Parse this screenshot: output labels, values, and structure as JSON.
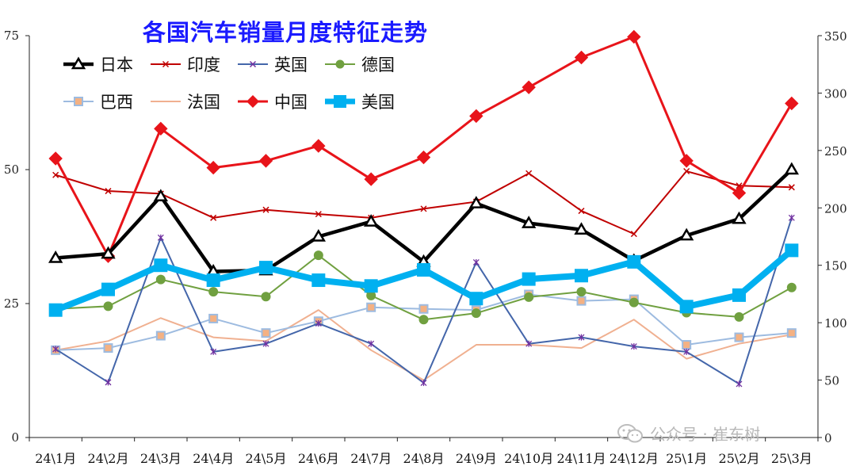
{
  "watermark": {
    "text": "公众号 · 崔东树",
    "icon": "wechat-icon",
    "color": "#b8b8b8"
  },
  "chart_data": {
    "type": "line",
    "title": "各国汽车销量月度特征走势",
    "title_color": "#1a1aff",
    "categories": [
      "24\\1月",
      "24\\2月",
      "24\\3月",
      "24\\4月",
      "24\\5月",
      "24\\6月",
      "24\\7月",
      "24\\8月",
      "24\\9月",
      "24\\10月",
      "24\\11月",
      "24\\12月",
      "25\\1月",
      "25\\2月",
      "25\\3月"
    ],
    "left_axis": {
      "ylim": [
        0,
        75
      ],
      "ticks": [
        0,
        25,
        50,
        75
      ]
    },
    "right_axis": {
      "ylim": [
        0,
        350
      ],
      "ticks": [
        0,
        50,
        100,
        150,
        200,
        250,
        300,
        350
      ]
    },
    "grid": false,
    "legend_position": "top-left",
    "series": [
      {
        "name": "日本",
        "axis": "left",
        "color": "#000000",
        "width": 4.5,
        "marker": "triangle",
        "values": [
          33.5,
          34.3,
          45.0,
          31.0,
          31.2,
          37.5,
          40.3,
          32.8,
          43.7,
          40.0,
          38.8,
          33.0,
          37.7,
          40.8,
          50.0
        ]
      },
      {
        "name": "印度",
        "axis": "left",
        "color": "#c00000",
        "width": 2,
        "marker": "x",
        "values": [
          49.0,
          46.0,
          45.5,
          41.0,
          42.5,
          41.7,
          41.0,
          42.7,
          44.0,
          49.3,
          42.3,
          38.0,
          49.7,
          47.0,
          46.7
        ]
      },
      {
        "name": "英国",
        "axis": "left",
        "color": "#4466aa",
        "width": 2,
        "marker": "star",
        "values": [
          16.5,
          10.3,
          37.3,
          16.0,
          17.5,
          21.3,
          17.5,
          10.2,
          32.7,
          17.5,
          18.7,
          17.0,
          16.0,
          10.0,
          41.0
        ]
      },
      {
        "name": "德国",
        "axis": "left",
        "color": "#70a040",
        "width": 2,
        "marker": "circle",
        "values": [
          24.0,
          24.5,
          29.5,
          27.2,
          26.3,
          34.0,
          26.5,
          22.0,
          23.2,
          26.2,
          27.2,
          25.2,
          23.3,
          22.5,
          28.0
        ]
      },
      {
        "name": "巴西",
        "axis": "left",
        "color": "#9dbbe0",
        "width": 2,
        "marker": "square",
        "values": [
          16.3,
          16.7,
          19.0,
          22.2,
          19.5,
          21.7,
          24.3,
          24.0,
          23.8,
          26.7,
          25.5,
          25.8,
          17.3,
          18.7,
          19.5
        ]
      },
      {
        "name": "法国",
        "axis": "left",
        "color": "#f0b090",
        "width": 2,
        "marker": "none",
        "values": [
          16.3,
          18.0,
          22.3,
          18.7,
          18.0,
          23.8,
          16.3,
          10.7,
          17.3,
          17.3,
          16.7,
          22.0,
          14.7,
          17.5,
          19.2
        ]
      },
      {
        "name": "中国",
        "axis": "right",
        "color": "#e8141a",
        "width": 3,
        "marker": "diamond",
        "values": [
          243,
          158,
          269,
          235,
          241,
          254,
          225,
          244,
          280,
          305,
          331,
          349,
          241,
          213,
          291
        ]
      },
      {
        "name": "美国",
        "axis": "right",
        "color": "#00b0f0",
        "width": 8,
        "marker": "square",
        "values": [
          111,
          129,
          150,
          137,
          148,
          137,
          132,
          146,
          121,
          138,
          141,
          153,
          114,
          124,
          163
        ]
      }
    ]
  }
}
